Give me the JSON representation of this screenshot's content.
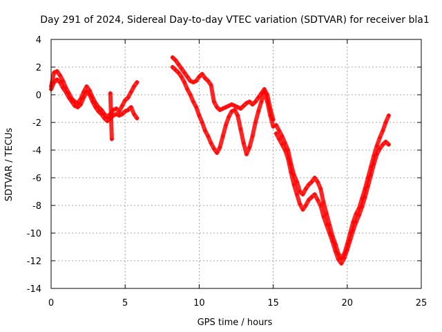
{
  "chart_data": {
    "type": "scatter",
    "title": "Day 291 of 2024, Sidereal Day-to-day VTEC variation (SDTVAR) for receiver bla1",
    "xlabel": "GPS time / hours",
    "ylabel": "SDTVAR / TECUs",
    "xlim": [
      0,
      25
    ],
    "ylim": [
      -14,
      4
    ],
    "xticks": [
      0,
      5,
      10,
      15,
      20,
      25
    ],
    "yticks": [
      -14,
      -12,
      -10,
      -8,
      -6,
      -4,
      -2,
      0,
      2,
      4
    ],
    "grid": true,
    "marker": "+",
    "color": "#ff0000",
    "series": [
      {
        "name": "segment-1",
        "x": [
          0.0,
          0.2,
          0.4,
          0.6,
          0.8,
          1.0,
          1.2,
          1.4,
          1.6,
          1.8,
          2.0,
          2.2,
          2.4,
          2.6,
          2.8,
          3.0,
          3.2,
          3.4,
          3.6,
          3.8,
          4.0,
          4.2,
          4.4,
          4.6,
          4.8,
          5.0,
          5.2,
          5.4,
          5.6,
          5.8
        ],
        "y": [
          0.6,
          1.6,
          1.7,
          1.4,
          1.0,
          0.5,
          0.1,
          -0.3,
          -0.5,
          -0.6,
          -0.3,
          0.2,
          0.6,
          0.3,
          -0.2,
          -0.6,
          -0.9,
          -1.1,
          -1.4,
          -1.6,
          -1.4,
          -1.1,
          -1.0,
          -1.2,
          -0.8,
          -0.4,
          -0.2,
          0.2,
          0.6,
          0.9
        ]
      },
      {
        "name": "segment-1-branch",
        "x": [
          0.0,
          0.2,
          0.4,
          0.6,
          0.8,
          1.0,
          1.2,
          1.4,
          1.6,
          1.8,
          2.0,
          2.2,
          2.4,
          2.6,
          2.8,
          3.0,
          3.2,
          3.4,
          3.6,
          3.8,
          4.0,
          4.2,
          4.4,
          4.6,
          4.8,
          5.0,
          5.2,
          5.4,
          5.6,
          5.8
        ],
        "y": [
          0.4,
          0.9,
          1.1,
          0.9,
          0.5,
          0.2,
          -0.2,
          -0.5,
          -0.8,
          -0.9,
          -0.7,
          -0.2,
          0.2,
          0.0,
          -0.5,
          -0.9,
          -1.2,
          -1.4,
          -1.7,
          -1.9,
          -1.7,
          -1.5,
          -1.4,
          -1.5,
          -1.4,
          -1.2,
          -1.1,
          -0.9,
          -1.4,
          -1.7
        ]
      },
      {
        "name": "outliers",
        "x": [
          4.0,
          4.1
        ],
        "y": [
          0.1,
          -3.2
        ]
      },
      {
        "name": "segment-2-upper",
        "x": [
          8.2,
          8.4,
          8.6,
          8.8,
          9.0,
          9.2,
          9.4,
          9.6,
          9.8,
          10.0,
          10.2,
          10.4,
          10.6,
          10.8,
          11.0,
          11.2,
          11.4,
          11.6,
          11.8,
          12.0,
          12.2,
          12.4,
          12.6,
          12.8,
          13.0,
          13.2,
          13.4,
          13.6,
          13.8,
          14.0,
          14.2,
          14.4,
          14.6,
          14.8,
          15.0
        ],
        "y": [
          2.7,
          2.5,
          2.2,
          1.9,
          1.6,
          1.3,
          1.0,
          0.9,
          1.0,
          1.3,
          1.5,
          1.2,
          1.0,
          0.7,
          -0.5,
          -0.9,
          -1.1,
          -1.0,
          -0.9,
          -0.8,
          -0.7,
          -0.8,
          -0.9,
          -1.0,
          -0.8,
          -0.6,
          -0.5,
          -0.7,
          -0.5,
          -0.2,
          0.1,
          0.4,
          0.0,
          -1.0,
          -1.8
        ]
      },
      {
        "name": "segment-2-lower",
        "x": [
          8.2,
          8.4,
          8.6,
          8.8,
          9.0,
          9.2,
          9.4,
          9.6,
          9.8,
          10.0,
          10.2,
          10.4,
          10.6,
          10.8,
          11.0,
          11.2,
          11.4,
          11.6,
          11.8,
          12.0,
          12.2,
          12.4,
          12.6,
          12.8,
          13.0,
          13.2,
          13.4,
          13.6,
          13.8,
          14.0,
          14.2,
          14.4,
          14.6,
          14.8,
          15.0
        ],
        "y": [
          2.0,
          1.8,
          1.6,
          1.3,
          0.9,
          0.4,
          0.0,
          -0.5,
          -0.9,
          -1.5,
          -2.0,
          -2.6,
          -3.0,
          -3.5,
          -3.9,
          -4.2,
          -3.8,
          -3.0,
          -2.2,
          -1.6,
          -1.2,
          -1.1,
          -1.5,
          -2.5,
          -3.5,
          -4.3,
          -3.8,
          -3.0,
          -2.0,
          -1.2,
          -0.5,
          0.2,
          -0.5,
          -1.5,
          -2.3
        ]
      },
      {
        "name": "segment-3-upper",
        "x": [
          15.2,
          15.4,
          15.6,
          15.8,
          16.0,
          16.2,
          16.4,
          16.6,
          16.8,
          17.0,
          17.2,
          17.4,
          17.6,
          17.8,
          18.0,
          18.2,
          18.4,
          18.6,
          18.8,
          19.0,
          19.2,
          19.4,
          19.6,
          19.8,
          20.0,
          20.2,
          20.4,
          20.6,
          20.8,
          21.0,
          21.2,
          21.4,
          21.6,
          21.8,
          22.0,
          22.2,
          22.4,
          22.6,
          22.8
        ],
        "y": [
          -2.2,
          -2.6,
          -3.0,
          -3.5,
          -4.0,
          -5.0,
          -5.8,
          -6.3,
          -7.0,
          -7.2,
          -6.8,
          -6.5,
          -6.3,
          -6.0,
          -6.3,
          -6.8,
          -7.8,
          -8.6,
          -9.4,
          -10.2,
          -10.8,
          -11.5,
          -11.8,
          -11.5,
          -10.8,
          -10.0,
          -9.2,
          -8.6,
          -8.2,
          -7.5,
          -6.8,
          -6.0,
          -5.2,
          -4.4,
          -3.7,
          -3.1,
          -2.6,
          -2.0,
          -1.5
        ]
      },
      {
        "name": "segment-3-lower",
        "x": [
          15.2,
          15.4,
          15.6,
          15.8,
          16.0,
          16.2,
          16.4,
          16.6,
          16.8,
          17.0,
          17.2,
          17.4,
          17.6,
          17.8,
          18.0,
          18.2,
          18.4,
          18.6,
          18.8,
          19.0,
          19.2,
          19.4,
          19.6,
          19.8,
          20.0,
          20.2,
          20.4,
          20.6,
          20.8,
          21.0,
          21.2,
          21.4,
          21.6,
          21.8,
          22.0,
          22.2,
          22.4,
          22.6,
          22.8
        ],
        "y": [
          -2.8,
          -3.2,
          -3.6,
          -4.0,
          -4.6,
          -5.6,
          -6.5,
          -7.2,
          -7.9,
          -8.3,
          -8.0,
          -7.6,
          -7.4,
          -7.2,
          -7.6,
          -8.0,
          -8.8,
          -9.4,
          -10.0,
          -10.6,
          -11.3,
          -11.9,
          -12.2,
          -11.8,
          -11.2,
          -10.5,
          -9.8,
          -9.2,
          -8.7,
          -8.1,
          -7.4,
          -6.6,
          -5.8,
          -5.0,
          -4.3,
          -3.9,
          -3.6,
          -3.4,
          -3.6
        ]
      }
    ]
  }
}
